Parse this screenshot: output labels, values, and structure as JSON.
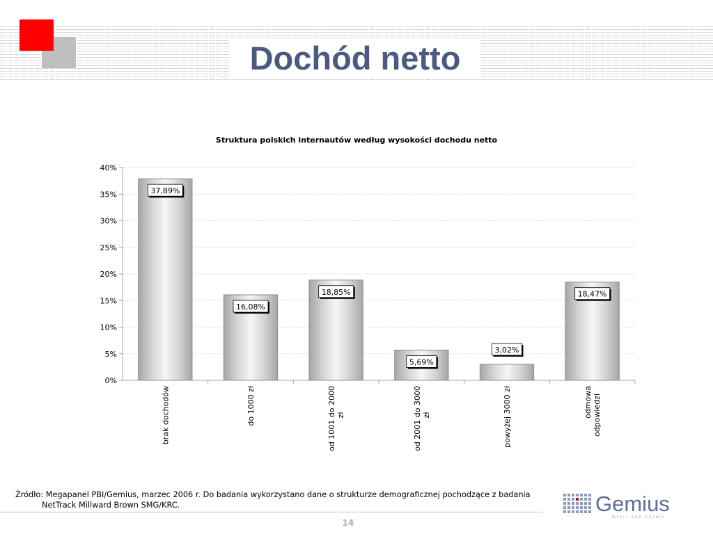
{
  "slide": {
    "title": "Dochód netto",
    "page_number": "14",
    "source_line1": "Źródło: Megapanel PBI/Gemius, marzec 2006 r. Do badania wykorzystano dane o strukturze demograficznej pochodzące z badania",
    "source_line2": "NetTrack Millward Brown SMG/KRC.",
    "logo_text": "Gemius",
    "logo_tagline": "MYŚLI BEZ GRANIC"
  },
  "colors": {
    "title": "#4a5a80",
    "accent_red": "#ff0000",
    "accent_gray": "#bfbfbf",
    "bar_face": "#e0e0e0",
    "bar_edge": "#8c8c8c",
    "logo_blue": "#5a6f96"
  },
  "chart_data": {
    "type": "bar",
    "title": "Struktura polskich internautów według wysokości dochodu netto",
    "categories": [
      [
        "brak dochodów"
      ],
      [
        "do 1000 zł"
      ],
      [
        "od 1001 do 2000",
        "zł"
      ],
      [
        "od 2001 do 3000",
        "zł"
      ],
      [
        "powyżej 3000 zł"
      ],
      [
        "odmowa",
        "odpowiedzi"
      ]
    ],
    "values": [
      37.89,
      16.08,
      18.85,
      5.69,
      3.02,
      18.47
    ],
    "data_labels": [
      "37,89%",
      "16,08%",
      "18,85%",
      "5,69%",
      "3,02%",
      "18,47%"
    ],
    "y_ticks": [
      "0%",
      "5%",
      "10%",
      "15%",
      "20%",
      "25%",
      "30%",
      "35%",
      "40%"
    ],
    "ylim": [
      0,
      40
    ],
    "y_step": 5,
    "grid": true,
    "legend": "none"
  }
}
